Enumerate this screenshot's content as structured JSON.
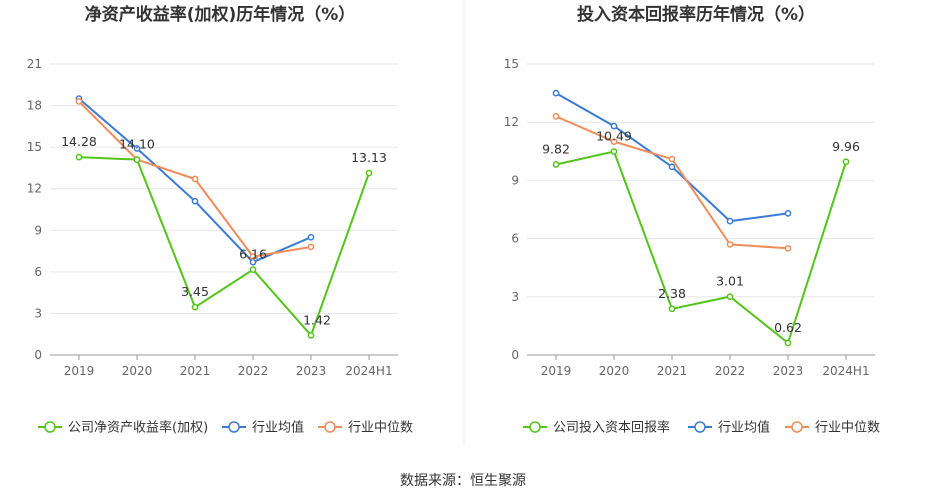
{
  "colors": {
    "company": "#52c41a",
    "avg": "#3a7bd5",
    "median": "#f08c5a",
    "grid": "#e6e6e6",
    "axis": "#999999"
  },
  "source_label": "数据来源：恒生聚源",
  "chart_data": [
    {
      "type": "line",
      "title": "净资产收益率(加权)历年情况（%）",
      "categories": [
        "2019",
        "2020",
        "2021",
        "2022",
        "2023",
        "2024H1"
      ],
      "y_ticks": [
        "0",
        "3",
        "6",
        "9",
        "12",
        "15",
        "18",
        "21"
      ],
      "ylim": [
        0,
        21
      ],
      "series": [
        {
          "name": "公司净资产收益率(加权)",
          "color_key": "company",
          "values": [
            14.28,
            14.1,
            3.45,
            6.16,
            1.42,
            13.13
          ],
          "labels": [
            "14.28",
            "14.10",
            "3.45",
            "6.16",
            "1.42",
            "13.13"
          ]
        },
        {
          "name": "行业均值",
          "color_key": "avg",
          "values": [
            18.5,
            14.9,
            11.1,
            6.7,
            8.5,
            null
          ]
        },
        {
          "name": "行业中位数",
          "color_key": "median",
          "values": [
            18.3,
            14.1,
            12.7,
            7.1,
            7.8,
            null
          ]
        }
      ]
    },
    {
      "type": "line",
      "title": "投入资本回报率历年情况（%）",
      "categories": [
        "2019",
        "2020",
        "2021",
        "2022",
        "2023",
        "2024H1"
      ],
      "y_ticks": [
        "0",
        "3",
        "6",
        "9",
        "12",
        "15"
      ],
      "ylim": [
        0,
        15
      ],
      "series": [
        {
          "name": "公司投入资本回报率",
          "color_key": "company",
          "values": [
            9.82,
            10.49,
            2.38,
            3.01,
            0.62,
            9.96
          ],
          "labels": [
            "9.82",
            "10.49",
            "2.38",
            "3.01",
            "0.62",
            "9.96"
          ]
        },
        {
          "name": "行业均值",
          "color_key": "avg",
          "values": [
            13.5,
            11.8,
            9.7,
            6.9,
            7.3,
            null
          ]
        },
        {
          "name": "行业中位数",
          "color_key": "median",
          "values": [
            12.3,
            11.0,
            10.1,
            5.7,
            5.5,
            null
          ]
        }
      ]
    }
  ]
}
